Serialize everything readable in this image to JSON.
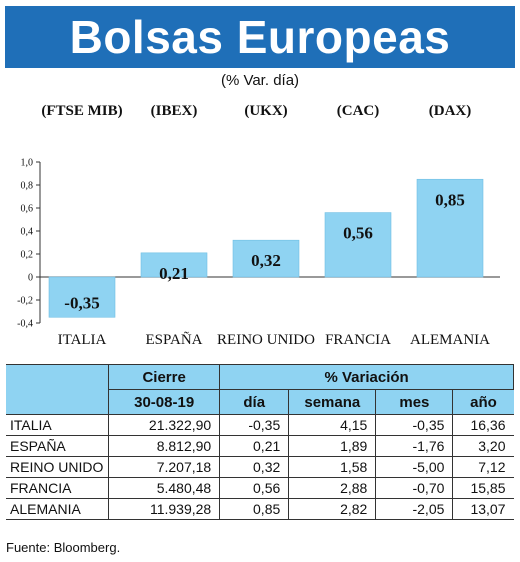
{
  "header": {
    "title": "Bolsas Europeas"
  },
  "subtitle": "(% Var. día)",
  "chart_data": {
    "type": "bar",
    "indices": [
      "(FTSE MIB)",
      "(IBEX)",
      "(UKX)",
      "(CAC)",
      "(DAX)"
    ],
    "categories": [
      "ITALIA",
      "ESPAÑA",
      "REINO UNIDO",
      "FRANCIA",
      "ALEMANIA"
    ],
    "values": [
      -0.35,
      0.21,
      0.32,
      0.56,
      0.85
    ],
    "value_labels": [
      "-0,35",
      "0,21",
      "0,32",
      "0,56",
      "0,85"
    ],
    "yticks": [
      1.0,
      0.8,
      0.6,
      0.4,
      0.2,
      0,
      -0.2,
      -0.4
    ],
    "ytick_labels": [
      "1,0",
      "0,8",
      "0,6",
      "0,4",
      "0,2",
      "0",
      "-0,2",
      "-0,4"
    ],
    "ylim": [
      -0.4,
      1.0
    ],
    "bar_color": "#8fd3f2"
  },
  "table": {
    "header_cierre": "Cierre",
    "header_variacion": "% Variación",
    "date": "30-08-19",
    "sub_dia": "día",
    "sub_semana": "semana",
    "sub_mes": "mes",
    "sub_ano": "año",
    "rows": [
      {
        "country": "ITALIA",
        "cierre": "21.322,90",
        "dia": "-0,35",
        "semana": "4,15",
        "mes": "-0,35",
        "ano": "16,36"
      },
      {
        "country": "ESPAÑA",
        "cierre": "8.812,90",
        "dia": "0,21",
        "semana": "1,89",
        "mes": "-1,76",
        "ano": "3,20"
      },
      {
        "country": "REINO UNIDO",
        "cierre": "7.207,18",
        "dia": "0,32",
        "semana": "1,58",
        "mes": "-5,00",
        "ano": "7,12"
      },
      {
        "country": "FRANCIA",
        "cierre": "5.480,48",
        "dia": "0,56",
        "semana": "2,88",
        "mes": "-0,70",
        "ano": "15,85"
      },
      {
        "country": "ALEMANIA",
        "cierre": "11.939,28",
        "dia": "0,85",
        "semana": "2,82",
        "mes": "-2,05",
        "ano": "13,07"
      }
    ]
  },
  "source": "Fuente: Bloomberg."
}
